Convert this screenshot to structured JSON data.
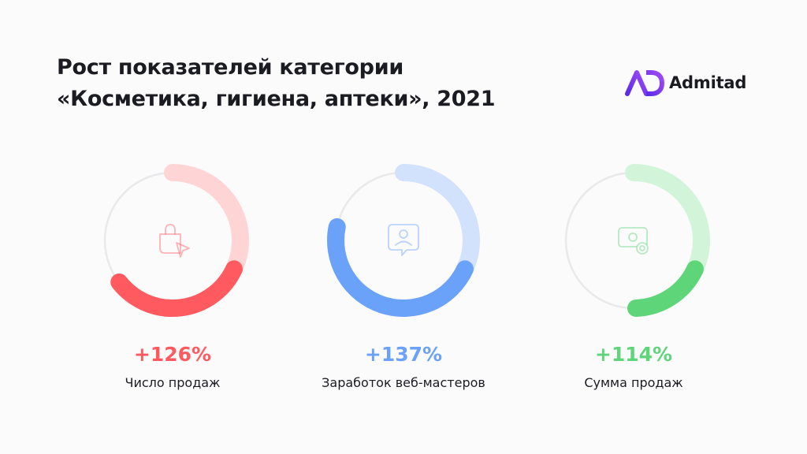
{
  "title": {
    "line1": "Рост показателей категории",
    "line2": "«Косметика, гигиена, аптеки», 2021"
  },
  "logo": {
    "text": "Admitad",
    "brand_color": "#7b3ff2"
  },
  "chart_data": {
    "type": "radial-progress",
    "title": "Рост показателей категории «Косметика, гигиена, аптеки», 2021",
    "items": [
      {
        "label": "Число продаж",
        "value": 126,
        "display": "+126%",
        "color": "#ff5a5f",
        "light_color": "#ffd4d4",
        "icon": "shopping-bag-cursor-icon"
      },
      {
        "label": "Заработок веб-мастеров",
        "value": 137,
        "display": "+137%",
        "color": "#6aa2fa",
        "light_color": "#d2e2fc",
        "icon": "user-profile-chat-icon"
      },
      {
        "label": "Сумма продаж",
        "value": 114,
        "display": "+114%",
        "color": "#5fd57a",
        "light_color": "#d2f5d9",
        "icon": "money-coins-icon"
      }
    ]
  }
}
